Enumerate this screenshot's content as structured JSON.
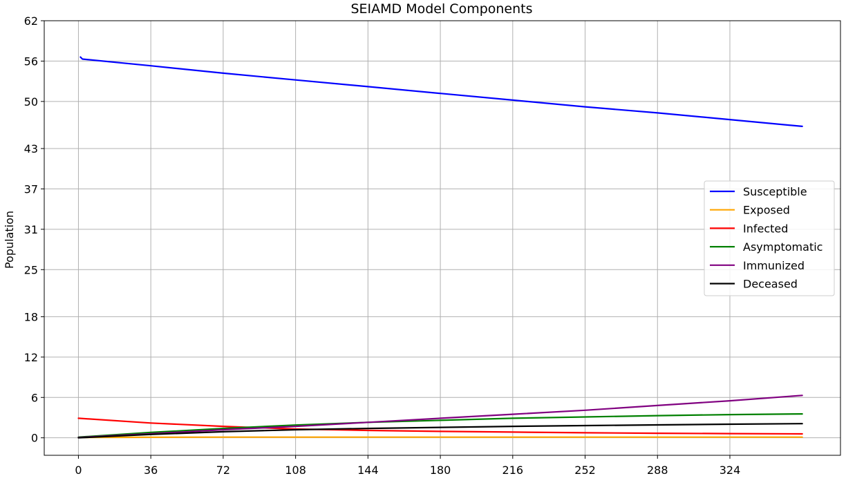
{
  "chart_data": {
    "type": "line",
    "title": "SEIAMD Model Components",
    "xlabel": "",
    "ylabel": "Population",
    "xlim": [
      -17,
      379
    ],
    "ylim": [
      -2.6,
      62
    ],
    "x_ticks": [
      0,
      36,
      72,
      108,
      144,
      180,
      216,
      252,
      288,
      324
    ],
    "y_ticks": [
      0,
      6,
      12,
      18,
      25,
      31,
      37,
      43,
      50,
      56,
      62
    ],
    "grid": true,
    "legend_position": "center-right",
    "series": [
      {
        "name": "Susceptible",
        "color": "#0000ff",
        "x": [
          1,
          2,
          36,
          72,
          108,
          144,
          180,
          216,
          252,
          288,
          324,
          360
        ],
        "y": [
          56.6,
          56.3,
          55.3,
          54.2,
          53.2,
          52.2,
          51.2,
          50.2,
          49.2,
          48.3,
          47.3,
          46.3
        ]
      },
      {
        "name": "Exposed",
        "color": "#ffa500",
        "x": [
          0,
          36,
          72,
          108,
          144,
          180,
          216,
          252,
          288,
          324,
          360
        ],
        "y": [
          0.05,
          0.08,
          0.1,
          0.1,
          0.1,
          0.1,
          0.1,
          0.1,
          0.1,
          0.1,
          0.1
        ]
      },
      {
        "name": "Infected",
        "color": "#ff0000",
        "x": [
          0,
          36,
          72,
          108,
          144,
          180,
          216,
          252,
          288,
          324,
          360
        ],
        "y": [
          2.9,
          2.2,
          1.7,
          1.3,
          1.1,
          0.95,
          0.85,
          0.75,
          0.68,
          0.62,
          0.58
        ]
      },
      {
        "name": "Asymptomatic",
        "color": "#008000",
        "x": [
          0,
          36,
          72,
          108,
          144,
          180,
          216,
          252,
          288,
          324,
          360
        ],
        "y": [
          0.1,
          0.8,
          1.4,
          1.9,
          2.3,
          2.6,
          2.9,
          3.1,
          3.3,
          3.45,
          3.55
        ]
      },
      {
        "name": "Immunized",
        "color": "#800080",
        "x": [
          0,
          36,
          72,
          108,
          144,
          180,
          216,
          252,
          288,
          324,
          360
        ],
        "y": [
          0.05,
          0.6,
          1.2,
          1.7,
          2.3,
          2.9,
          3.5,
          4.1,
          4.8,
          5.5,
          6.3
        ]
      },
      {
        "name": "Deceased",
        "color": "#000000",
        "x": [
          0,
          36,
          72,
          108,
          144,
          180,
          216,
          252,
          288,
          324,
          360
        ],
        "y": [
          0,
          0.5,
          0.9,
          1.2,
          1.4,
          1.55,
          1.7,
          1.82,
          1.92,
          2.02,
          2.1
        ]
      }
    ]
  }
}
